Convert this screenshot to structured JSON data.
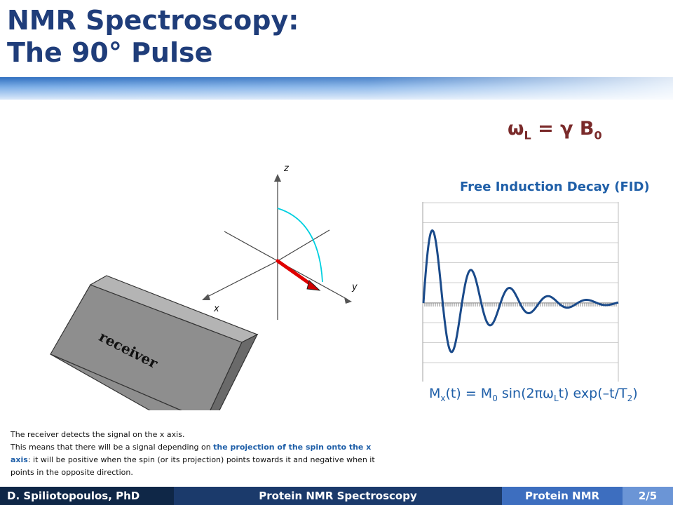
{
  "slide": {
    "title_line1": "NMR Spectroscopy:",
    "title_line2": "The 90° Pulse",
    "larmor": {
      "omega": "ω",
      "sub": "L",
      "rest": " = γ B",
      "sub2": "0"
    },
    "vector_diagram": {
      "axis_x": "x",
      "axis_y": "y",
      "axis_z": "z",
      "receiver_label": "receiver"
    },
    "fid": {
      "title": "Free Induction Decay (FID)",
      "equation": {
        "p1": "M",
        "s1": "x",
        "p2": "(t) = M",
        "s2": "0",
        "p3": " sin(2πω",
        "s3": "L",
        "p4": "t) exp(–t/T",
        "s4": "2",
        "p5": ")"
      }
    },
    "caption": {
      "line1": "The receiver detects the signal on the x axis.",
      "line2_start": "This means that there will be a signal depending on ",
      "line2_highlight": "the projection of the spin onto the x axis",
      "line2_end": ": it will be positive when the spin (or its projection) points towards it and negative when it points in the opposite direction."
    },
    "footer": {
      "author": "D. Spiliotopoulos,  PhD",
      "course": "Protein NMR Spectroscopy",
      "section": "Protein NMR",
      "page": "2/5"
    }
  },
  "colors": {
    "title": "#1f3d7a",
    "accent_blue": "#1f5fa8",
    "larmor_red": "#7a2a2a",
    "spin_vector": "#e00000",
    "arc": "#00d0e0",
    "fid_line": "#1a4a8a"
  }
}
